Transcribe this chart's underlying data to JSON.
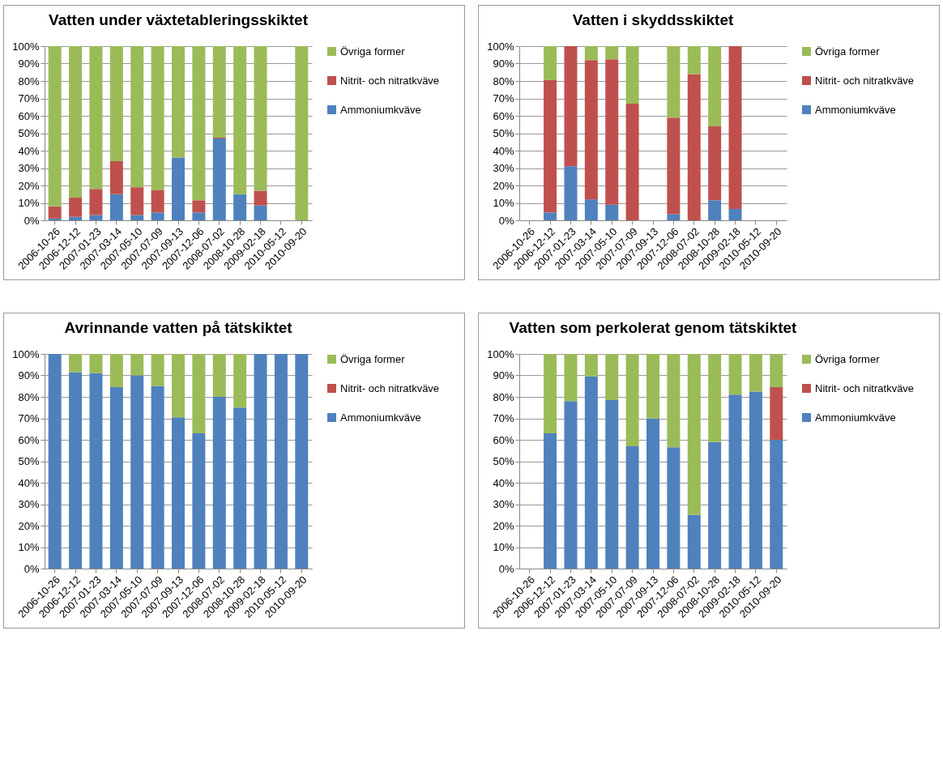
{
  "chart_data": [
    {
      "type": "bar",
      "title": "Vatten under växtetableringsskiktet",
      "stacked": true,
      "grid": "y",
      "legend": "right",
      "categories": [
        "2006-10-26",
        "2006-12-12",
        "2007-01-23",
        "2007-03-14",
        "2007-05-10",
        "2007-07-09",
        "2007-09-13",
        "2007-12-06",
        "2008-07-02",
        "2008-10-28",
        "2009-02-18",
        "2010-05-12",
        "2010-09-20"
      ],
      "ylim": [
        0,
        100
      ],
      "yticks": [
        {
          "value": 0,
          "label": "0%"
        },
        {
          "value": 10,
          "label": "10%"
        },
        {
          "value": 20,
          "label": "20%"
        },
        {
          "value": 30,
          "label": "30%"
        },
        {
          "value": 40,
          "label": "40%"
        },
        {
          "value": 50,
          "label": "50%"
        },
        {
          "value": 60,
          "label": "60%"
        },
        {
          "value": 70,
          "label": "70%"
        },
        {
          "value": 80,
          "label": "80%"
        },
        {
          "value": 90,
          "label": "90%"
        },
        {
          "value": 100,
          "label": "100%"
        }
      ],
      "series": [
        {
          "name": "Ammoniumkväve",
          "color": "#4f81bd",
          "values": [
            1,
            2,
            3,
            15,
            3,
            4.5,
            36,
            4.5,
            47,
            15,
            8.5,
            null,
            0
          ]
        },
        {
          "name": "Nitrit- och nitratkväve",
          "color": "#c0504d",
          "values": [
            7,
            11,
            15,
            19,
            16,
            13,
            0,
            7,
            0.5,
            0,
            8.5,
            null,
            0
          ]
        },
        {
          "name": "Övriga former",
          "color": "#9bbb59",
          "values": [
            92,
            87,
            82,
            66,
            81,
            82.5,
            64,
            88.5,
            52.5,
            85,
            83,
            null,
            100
          ]
        }
      ]
    },
    {
      "type": "bar",
      "title": "Vatten i skyddsskiktet",
      "stacked": true,
      "grid": "y",
      "legend": "right",
      "categories": [
        "2006-10-26",
        "2006-12-12",
        "2007-01-23",
        "2007-03-14",
        "2007-05-10",
        "2007-07-09",
        "2007-09-13",
        "2007-12-06",
        "2008-07-02",
        "2008-10-28",
        "2009-02-18",
        "2010-05-12",
        "2010-09-20"
      ],
      "ylim": [
        0,
        100
      ],
      "yticks": [
        {
          "value": 0,
          "label": "0%"
        },
        {
          "value": 10,
          "label": "10%"
        },
        {
          "value": 20,
          "label": "20%"
        },
        {
          "value": 30,
          "label": "30%"
        },
        {
          "value": 40,
          "label": "40%"
        },
        {
          "value": 50,
          "label": "50%"
        },
        {
          "value": 60,
          "label": "60%"
        },
        {
          "value": 70,
          "label": "70%"
        },
        {
          "value": 80,
          "label": "80%"
        },
        {
          "value": 90,
          "label": "90%"
        },
        {
          "value": 100,
          "label": "100%"
        }
      ],
      "series": [
        {
          "name": "Ammoniumkväve",
          "color": "#4f81bd",
          "values": [
            null,
            4.5,
            31,
            12,
            9,
            0,
            null,
            3.5,
            0,
            11.5,
            6.5,
            null,
            null
          ]
        },
        {
          "name": "Nitrit- och nitratkväve",
          "color": "#c0504d",
          "values": [
            null,
            76,
            69,
            80,
            83.5,
            67,
            null,
            55.5,
            84,
            42.5,
            93.5,
            null,
            null
          ]
        },
        {
          "name": "Övriga former",
          "color": "#9bbb59",
          "values": [
            null,
            19.5,
            0,
            8,
            7.5,
            33,
            null,
            41,
            16,
            46,
            0,
            null,
            null
          ]
        }
      ]
    },
    {
      "type": "bar",
      "title": "Avrinnande vatten på tätskiktet",
      "stacked": true,
      "grid": "y",
      "legend": "right",
      "categories": [
        "2006-10-26",
        "2006-12-12",
        "2007-01-23",
        "2007-03-14",
        "2007-05-10",
        "2007-07-09",
        "2007-09-13",
        "2007-12-06",
        "2008-07-02",
        "2008-10-28",
        "2009-02-18",
        "2010-05-12",
        "2010-09-20"
      ],
      "ylim": [
        0,
        100
      ],
      "yticks": [
        {
          "value": 0,
          "label": "0%"
        },
        {
          "value": 10,
          "label": "10%"
        },
        {
          "value": 20,
          "label": "20%"
        },
        {
          "value": 30,
          "label": "30%"
        },
        {
          "value": 40,
          "label": "40%"
        },
        {
          "value": 50,
          "label": "50%"
        },
        {
          "value": 60,
          "label": "60%"
        },
        {
          "value": 70,
          "label": "70%"
        },
        {
          "value": 80,
          "label": "80%"
        },
        {
          "value": 90,
          "label": "90%"
        },
        {
          "value": 100,
          "label": "100%"
        }
      ],
      "series": [
        {
          "name": "Ammoniumkväve",
          "color": "#4f81bd",
          "values": [
            100,
            91.5,
            91,
            84.5,
            90,
            85,
            70.5,
            63,
            80,
            75,
            100,
            100,
            100
          ]
        },
        {
          "name": "Nitrit- och nitratkväve",
          "color": "#c0504d",
          "values": [
            0,
            0,
            0,
            0,
            0,
            0,
            0,
            0,
            0,
            0,
            0,
            0,
            0
          ]
        },
        {
          "name": "Övriga former",
          "color": "#9bbb59",
          "values": [
            0,
            8.5,
            9,
            15.5,
            10,
            15,
            29.5,
            37,
            20,
            25,
            0,
            0,
            0
          ]
        }
      ]
    },
    {
      "type": "bar",
      "title": "Vatten som perkolerat genom tätskiktet",
      "stacked": true,
      "grid": "y",
      "legend": "right",
      "categories": [
        "2006-10-26",
        "2006-12-12",
        "2007-01-23",
        "2007-03-14",
        "2007-05-10",
        "2007-07-09",
        "2007-09-13",
        "2007-12-06",
        "2008-07-02",
        "2008-10-28",
        "2009-02-18",
        "2010-05-12",
        "2010-09-20"
      ],
      "ylim": [
        0,
        100
      ],
      "yticks": [
        {
          "value": 0,
          "label": "0%"
        },
        {
          "value": 10,
          "label": "10%"
        },
        {
          "value": 20,
          "label": "20%"
        },
        {
          "value": 30,
          "label": "30%"
        },
        {
          "value": 40,
          "label": "40%"
        },
        {
          "value": 50,
          "label": "50%"
        },
        {
          "value": 60,
          "label": "60%"
        },
        {
          "value": 70,
          "label": "70%"
        },
        {
          "value": 80,
          "label": "80%"
        },
        {
          "value": 90,
          "label": "90%"
        },
        {
          "value": 100,
          "label": "100%"
        }
      ],
      "series": [
        {
          "name": "Ammoniumkväve",
          "color": "#4f81bd",
          "values": [
            null,
            63,
            78,
            89.5,
            78.5,
            57,
            70,
            56.5,
            25,
            59,
            81,
            82.5,
            60
          ]
        },
        {
          "name": "Nitrit- och nitratkväve",
          "color": "#c0504d",
          "values": [
            null,
            0,
            0,
            0,
            0,
            0,
            0,
            0,
            0,
            0,
            0,
            0,
            24.5
          ]
        },
        {
          "name": "Övriga former",
          "color": "#9bbb59",
          "values": [
            null,
            37,
            22,
            10.5,
            21.5,
            43,
            30,
            43.5,
            75,
            41,
            19,
            17.5,
            15.5
          ]
        }
      ]
    }
  ]
}
